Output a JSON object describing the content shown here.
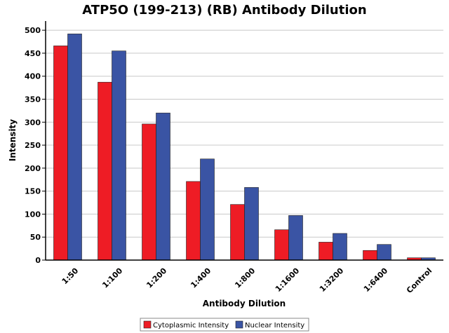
{
  "chart_data": {
    "type": "bar",
    "title": "ATP5O (199-213) (RB) Antibody Dilution",
    "xlabel": "Antibody Dilution",
    "ylabel": "Intensity",
    "ylim": [
      0,
      520
    ],
    "yticks": [
      0,
      50,
      100,
      150,
      200,
      250,
      300,
      350,
      400,
      450,
      500
    ],
    "grid": true,
    "legend_position": "bottom",
    "categories": [
      "1:50",
      "1:100",
      "1:200",
      "1:400",
      "1:800",
      "1:1600",
      "1:3200",
      "1:6400",
      "Control"
    ],
    "series": [
      {
        "name": "Cytoplasmic Intensity",
        "color": "#ee1c25",
        "values": [
          466,
          387,
          296,
          171,
          121,
          66,
          39,
          21,
          5
        ]
      },
      {
        "name": "Nuclear Intensity",
        "color": "#3a54a4",
        "values": [
          492,
          455,
          320,
          220,
          158,
          97,
          58,
          34,
          5
        ]
      }
    ]
  }
}
